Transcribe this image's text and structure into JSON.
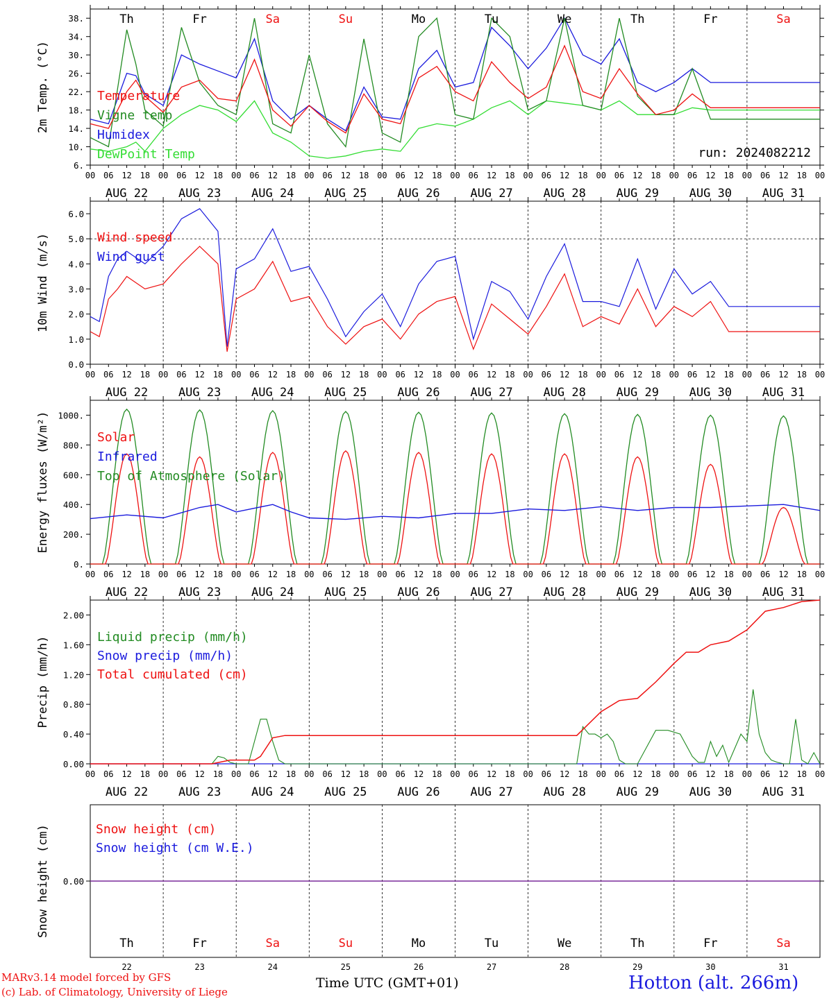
{
  "colors": {
    "red": "#ee1111",
    "green": "#228b22",
    "blue": "#1a1add",
    "light_green": "#33dd33",
    "purple": "#7a2a9a",
    "weekend": "#ee1111"
  },
  "days": [
    {
      "abbr": "Th",
      "date": "AUG 22",
      "num": "22",
      "weekend": false
    },
    {
      "abbr": "Fr",
      "date": "AUG 23",
      "num": "23",
      "weekend": false
    },
    {
      "abbr": "Sa",
      "date": "AUG 24",
      "num": "24",
      "weekend": true
    },
    {
      "abbr": "Su",
      "date": "AUG 25",
      "num": "25",
      "weekend": true
    },
    {
      "abbr": "Mo",
      "date": "AUG 26",
      "num": "26",
      "weekend": false
    },
    {
      "abbr": "Tu",
      "date": "AUG 27",
      "num": "27",
      "weekend": false
    },
    {
      "abbr": "We",
      "date": "AUG 28",
      "num": "28",
      "weekend": false
    },
    {
      "abbr": "Th",
      "date": "AUG 29",
      "num": "29",
      "weekend": false
    },
    {
      "abbr": "Fr",
      "date": "AUG 30",
      "num": "30",
      "weekend": false
    },
    {
      "abbr": "Sa",
      "date": "AUG 31",
      "num": "31",
      "weekend": true
    }
  ],
  "hour_ticks": [
    "00",
    "06",
    "12",
    "18"
  ],
  "hour_ticks_end": "00",
  "run_label": "run: 2024082212",
  "footer": {
    "model": "MARv3.14 model forced by GFS",
    "copyright": "(c) Lab. of Climatology, University of Liege",
    "xlabel": "Time UTC (GMT+01)",
    "station": "Hotton (alt. 266m)"
  },
  "chart_data": [
    {
      "type": "line",
      "ylabel": "2m Temp. (°C)",
      "ylim": [
        6,
        40
      ],
      "yticks": [
        "6.",
        "10.",
        "14.",
        "18.",
        "22.",
        "26.",
        "30.",
        "34.",
        "38."
      ],
      "x_unit": "hours since 2024-08-22 00 UTC",
      "series": [
        {
          "name": "Temperature",
          "color": "red",
          "x": [
            0,
            6,
            12,
            15,
            18,
            24,
            30,
            36,
            42,
            48,
            54,
            60,
            66,
            72,
            78,
            84,
            90,
            96,
            102,
            108,
            114,
            120,
            126,
            132,
            138,
            144,
            150,
            156,
            162,
            168,
            174,
            180,
            186,
            192,
            198,
            204,
            210,
            216,
            222,
            228,
            234,
            240
          ],
          "values": [
            15,
            14,
            22,
            24.5,
            21,
            17.5,
            23,
            24.5,
            20.5,
            20,
            29,
            18,
            14.5,
            19,
            15.5,
            13,
            21.5,
            16,
            15,
            25,
            27.5,
            22,
            20,
            28.5,
            24,
            20.5,
            23,
            32,
            22,
            20.5,
            27,
            21.5,
            17,
            18,
            21.5,
            18.5,
            18.5,
            18.5,
            18.5,
            18.5,
            18.5,
            18.5
          ]
        },
        {
          "name": "Vigne temp",
          "color": "green",
          "x": [
            0,
            6,
            12,
            15,
            18,
            24,
            30,
            36,
            42,
            48,
            54,
            60,
            66,
            72,
            78,
            84,
            90,
            96,
            102,
            108,
            114,
            120,
            126,
            132,
            138,
            144,
            150,
            156,
            162,
            168,
            174,
            180,
            186,
            192,
            198,
            204,
            210,
            216,
            222,
            228,
            234,
            240
          ],
          "values": [
            12,
            10,
            35.5,
            28,
            18,
            14.5,
            36,
            24,
            19,
            17,
            38,
            15,
            13,
            30,
            15,
            10,
            33.5,
            13,
            11,
            34,
            38,
            17,
            16,
            38,
            34,
            18,
            20,
            38,
            19,
            18,
            38,
            21,
            17,
            17,
            27,
            16,
            16,
            16,
            16,
            16,
            16,
            16
          ]
        },
        {
          "name": "Humidex",
          "color": "blue",
          "x": [
            0,
            6,
            12,
            15,
            18,
            24,
            30,
            36,
            42,
            48,
            54,
            60,
            66,
            72,
            78,
            84,
            90,
            96,
            102,
            108,
            114,
            120,
            126,
            132,
            138,
            144,
            150,
            156,
            162,
            168,
            174,
            180,
            186,
            192,
            198,
            204,
            210,
            216,
            222,
            228,
            234,
            240
          ],
          "values": [
            16,
            15,
            26,
            25.5,
            21.5,
            19,
            30,
            28,
            26.5,
            25,
            33.5,
            20,
            16,
            19,
            16,
            13.5,
            23,
            16.5,
            16,
            27,
            31,
            23,
            24,
            36,
            32,
            27,
            31.5,
            38,
            30,
            28,
            33.5,
            24,
            22,
            24,
            27,
            24,
            24,
            24,
            24,
            24,
            24,
            24
          ]
        },
        {
          "name": "DewPoint Temp",
          "color": "light_green",
          "x": [
            0,
            6,
            12,
            15,
            18,
            24,
            30,
            36,
            42,
            48,
            54,
            60,
            66,
            72,
            78,
            84,
            90,
            96,
            102,
            108,
            114,
            120,
            126,
            132,
            138,
            144,
            150,
            156,
            162,
            168,
            174,
            180,
            186,
            192,
            198,
            204,
            210,
            216,
            222,
            228,
            234,
            240
          ],
          "values": [
            9.5,
            9,
            10,
            11,
            9,
            14,
            17,
            19,
            18,
            15.5,
            20,
            13,
            11,
            8,
            7.5,
            8,
            9,
            9.5,
            9,
            14,
            15,
            14.5,
            16,
            18.5,
            20,
            17,
            20,
            19.5,
            19,
            18,
            20,
            17,
            17,
            17,
            18.5,
            18,
            18,
            18,
            18,
            18,
            18,
            18
          ]
        }
      ]
    },
    {
      "type": "line",
      "ylabel": "10m Wind (m/s)",
      "ylim": [
        0,
        6.5
      ],
      "yticks": [
        "0.0",
        "1.0",
        "2.0",
        "3.0",
        "4.0",
        "5.0",
        "6.0"
      ],
      "ref_line": 5.0,
      "series": [
        {
          "name": "Wind speed",
          "color": "red",
          "x": [
            0,
            3,
            6,
            9,
            12,
            18,
            24,
            30,
            36,
            42,
            45,
            48,
            54,
            60,
            66,
            72,
            78,
            84,
            90,
            96,
            102,
            108,
            114,
            120,
            126,
            132,
            138,
            144,
            150,
            156,
            162,
            168,
            174,
            180,
            186,
            192,
            198,
            204,
            210,
            216,
            222,
            228,
            234,
            240
          ],
          "values": [
            1.3,
            1.1,
            2.6,
            3.0,
            3.5,
            3.0,
            3.2,
            4.0,
            4.7,
            4.0,
            0.5,
            2.6,
            3.0,
            4.1,
            2.5,
            2.7,
            1.5,
            0.8,
            1.5,
            1.8,
            1.0,
            2.0,
            2.5,
            2.7,
            0.6,
            2.4,
            1.8,
            1.2,
            2.3,
            3.6,
            1.5,
            1.9,
            1.6,
            3.0,
            1.5,
            2.3,
            1.9,
            2.5,
            1.3,
            1.3,
            1.3,
            1.3,
            1.3,
            1.3
          ]
        },
        {
          "name": "Wind gust",
          "color": "blue",
          "x": [
            0,
            3,
            6,
            9,
            12,
            18,
            24,
            30,
            36,
            42,
            45,
            48,
            54,
            60,
            66,
            72,
            78,
            84,
            90,
            96,
            102,
            108,
            114,
            120,
            126,
            132,
            138,
            144,
            150,
            156,
            162,
            168,
            174,
            180,
            186,
            192,
            198,
            204,
            210,
            216,
            222,
            228,
            234,
            240
          ],
          "values": [
            1.9,
            1.7,
            3.5,
            4.2,
            4.5,
            4.0,
            4.7,
            5.8,
            6.2,
            5.3,
            0.7,
            3.8,
            4.2,
            5.4,
            3.7,
            3.9,
            2.6,
            1.1,
            2.1,
            2.8,
            1.5,
            3.2,
            4.1,
            4.3,
            1.0,
            3.3,
            2.9,
            1.8,
            3.5,
            4.8,
            2.5,
            2.5,
            2.3,
            4.2,
            2.2,
            3.8,
            2.8,
            3.3,
            2.3,
            2.3,
            2.3,
            2.3,
            2.3,
            2.3
          ]
        }
      ]
    },
    {
      "type": "line",
      "ylabel": "Energy fluxes (W/m²)",
      "ylim": [
        0,
        1100
      ],
      "yticks": [
        "0.",
        "200.",
        "400.",
        "600.",
        "800.",
        "1000."
      ],
      "series": [
        {
          "name": "Solar",
          "color": "red",
          "daily_peaks": [
            740,
            720,
            750,
            760,
            750,
            740,
            740,
            720,
            670,
            380
          ]
        },
        {
          "name": "Infrared",
          "color": "blue",
          "x": [
            0,
            12,
            24,
            36,
            42,
            48,
            60,
            66,
            72,
            84,
            96,
            108,
            120,
            132,
            144,
            156,
            168,
            180,
            192,
            204,
            216,
            228,
            240
          ],
          "values": [
            305,
            330,
            310,
            380,
            400,
            350,
            400,
            350,
            310,
            300,
            320,
            310,
            340,
            340,
            370,
            360,
            385,
            360,
            380,
            380,
            390,
            400,
            360
          ]
        },
        {
          "name": "Top of Atmosphere (Solar)",
          "color": "green",
          "daily_peaks": [
            1040,
            1035,
            1030,
            1025,
            1020,
            1015,
            1010,
            1005,
            1000,
            995
          ]
        }
      ]
    },
    {
      "type": "line",
      "ylabel": "Precip (mm/h)",
      "ylim": [
        0,
        2.2
      ],
      "yticks": [
        "0.00",
        "0.40",
        "0.80",
        "1.20",
        "1.60",
        "2.00"
      ],
      "series": [
        {
          "name": "Liquid precip (mm/h)",
          "color": "green",
          "x": [
            0,
            40,
            42,
            44,
            46,
            48,
            52,
            54,
            56,
            58,
            60,
            62,
            64,
            160,
            162,
            164,
            166,
            168,
            170,
            172,
            174,
            176,
            180,
            186,
            190,
            194,
            198,
            200,
            202,
            204,
            206,
            208,
            210,
            214,
            216,
            218,
            220,
            222,
            224,
            226,
            228,
            230,
            232,
            234,
            236,
            238,
            240
          ],
          "values": [
            0,
            0,
            0.1,
            0.08,
            0.02,
            0,
            0,
            0.3,
            0.6,
            0.6,
            0.3,
            0.05,
            0,
            0,
            0.5,
            0.4,
            0.4,
            0.35,
            0.4,
            0.3,
            0.05,
            0,
            0,
            0.45,
            0.45,
            0.4,
            0.1,
            0.02,
            0.02,
            0.3,
            0.1,
            0.25,
            0.02,
            0.4,
            0.3,
            1.0,
            0.4,
            0.15,
            0.05,
            0.02,
            0,
            0,
            0.6,
            0.05,
            0,
            0.15,
            0
          ]
        },
        {
          "name": "Snow precip (mm/h)",
          "color": "blue",
          "x": [
            0,
            240
          ],
          "values": [
            0,
            0
          ]
        },
        {
          "name": "Total cumulated (cm)",
          "color": "red",
          "x": [
            0,
            40,
            46,
            54,
            56,
            60,
            64,
            160,
            168,
            174,
            180,
            186,
            192,
            196,
            200,
            204,
            210,
            216,
            222,
            228,
            234,
            240
          ],
          "values": [
            0,
            0,
            0.05,
            0.05,
            0.1,
            0.35,
            0.38,
            0.38,
            0.7,
            0.85,
            0.88,
            1.1,
            1.35,
            1.5,
            1.5,
            1.6,
            1.65,
            1.8,
            2.05,
            2.1,
            2.18,
            2.2
          ]
        }
      ]
    },
    {
      "type": "line",
      "ylabel": "Snow height (cm)",
      "yticks": [
        "0.00"
      ],
      "series": [
        {
          "name": "Snow height (cm)",
          "color": "red",
          "x": [
            0,
            240
          ],
          "values": [
            0,
            0
          ]
        },
        {
          "name": "Snow height (cm W.E.)",
          "color": "blue",
          "x": [
            0,
            240
          ],
          "values": [
            0,
            0
          ]
        }
      ]
    }
  ]
}
